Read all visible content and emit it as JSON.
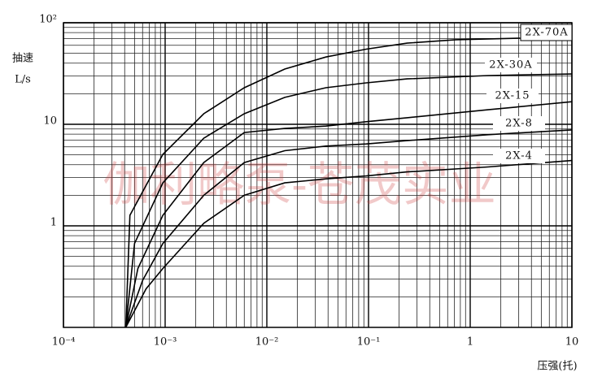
{
  "chart_data": {
    "type": "line",
    "ylabel": [
      "抽速",
      "L/s"
    ],
    "xlabel": "压强(托)",
    "watermark": "伽利略泵-苍茂实业",
    "log_x": true,
    "log_y": true,
    "grid": true,
    "xlim": [
      0.0001,
      10
    ],
    "ylim": [
      0.1,
      100
    ],
    "xticks": [
      {
        "value": 0.0001,
        "label": "10⁻⁴"
      },
      {
        "value": 0.001,
        "label": "10⁻³"
      },
      {
        "value": 0.01,
        "label": "10⁻²"
      },
      {
        "value": 0.1,
        "label": "10⁻¹"
      },
      1,
      10
    ],
    "yticks": [
      {
        "value": 100,
        "label": "10²"
      },
      10,
      1
    ],
    "series": [
      {
        "name": "2X-70A",
        "color": "#000000",
        "x": [
          0.00041,
          0.00045,
          0.00095,
          0.0024,
          0.006,
          0.015,
          0.038,
          0.095,
          0.24,
          0.72,
          3.1
        ],
        "values": [
          0.1,
          1.27,
          5.06,
          12.7,
          22.9,
          35,
          46,
          55,
          63,
          68,
          70.5
        ]
      },
      {
        "name": "2X-30A",
        "color": "#000000",
        "x": [
          0.00041,
          0.0005,
          0.00095,
          0.0024,
          0.006,
          0.015,
          0.038,
          0.095,
          0.24,
          1.5,
          10
        ],
        "values": [
          0.1,
          0.67,
          2.65,
          7.3,
          12.7,
          18.4,
          22.9,
          25.6,
          28,
          30.2,
          31.3
        ]
      },
      {
        "name": "2X-15",
        "color": "#000000",
        "x": [
          0.00041,
          0.00054,
          0.00095,
          0.0024,
          0.006,
          0.015,
          0.038,
          0.095,
          0.24,
          1.5,
          10
        ],
        "values": [
          0.1,
          0.38,
          1.27,
          4.2,
          8.3,
          9.1,
          9.6,
          10.6,
          11.6,
          13.9,
          16.7
        ]
      },
      {
        "name": "2X-8",
        "color": "#000000",
        "x": [
          0.00041,
          0.0006,
          0.00095,
          0.0024,
          0.006,
          0.015,
          0.038,
          0.095,
          0.24,
          1.5,
          10
        ],
        "values": [
          0.1,
          0.29,
          0.67,
          2.0,
          4.2,
          5.5,
          6.1,
          6.4,
          6.9,
          7.9,
          8.8
        ]
      },
      {
        "name": "2X-4",
        "color": "#000000",
        "x": [
          0.00041,
          0.00065,
          0.00095,
          0.0024,
          0.006,
          0.015,
          0.038,
          0.095,
          0.24,
          1.5,
          10
        ],
        "values": [
          0.1,
          0.24,
          0.38,
          1.06,
          2.0,
          2.65,
          2.9,
          3.1,
          3.4,
          3.8,
          4.4
        ]
      }
    ]
  }
}
